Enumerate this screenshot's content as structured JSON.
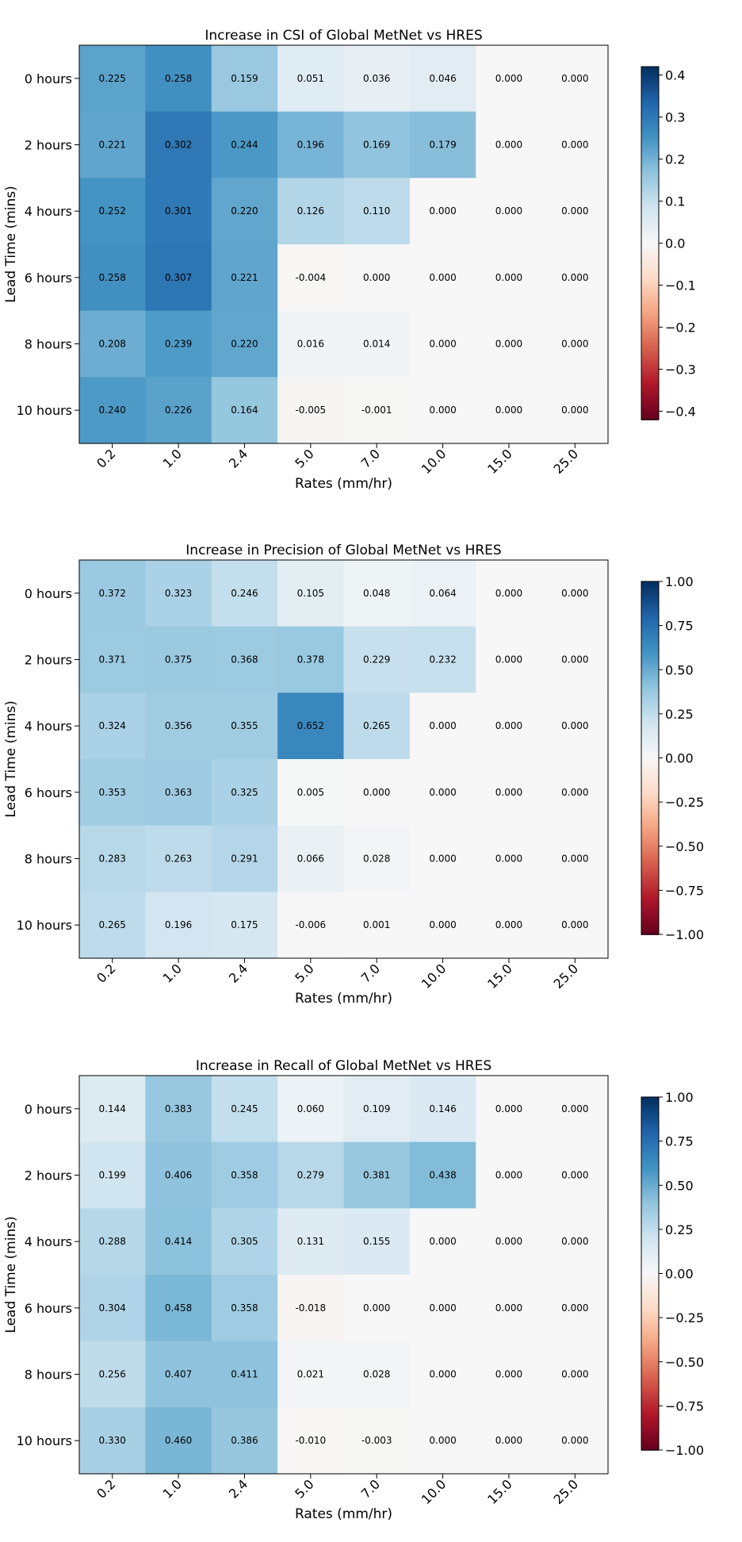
{
  "chart_data": [
    {
      "type": "heatmap",
      "title": "Increase in CSI of Global MetNet vs HRES",
      "xlabel": "Rates (mm/hr)",
      "ylabel": "Lead Time (mins)",
      "x_categories": [
        "0.2",
        "1.0",
        "2.4",
        "5.0",
        "7.0",
        "10.0",
        "15.0",
        "25.0"
      ],
      "y_categories": [
        "0 hours",
        "2 hours",
        "4 hours",
        "6 hours",
        "8 hours",
        "10 hours"
      ],
      "values": [
        [
          0.225,
          0.258,
          0.159,
          0.051,
          0.036,
          0.046,
          0.0,
          0.0
        ],
        [
          0.221,
          0.302,
          0.244,
          0.196,
          0.169,
          0.179,
          0.0,
          0.0
        ],
        [
          0.252,
          0.301,
          0.22,
          0.126,
          0.11,
          0.0,
          0.0,
          0.0
        ],
        [
          0.258,
          0.307,
          0.221,
          -0.004,
          0.0,
          0.0,
          0.0,
          0.0
        ],
        [
          0.208,
          0.239,
          0.22,
          0.016,
          0.014,
          0.0,
          0.0,
          0.0
        ],
        [
          0.24,
          0.226,
          0.164,
          -0.005,
          -0.001,
          0.0,
          0.0,
          0.0
        ]
      ],
      "value_labels": [
        [
          "0.225",
          "0.258",
          "0.159",
          "0.051",
          "0.036",
          "0.046",
          "0.000",
          "0.000"
        ],
        [
          "0.221",
          "0.302",
          "0.244",
          "0.196",
          "0.169",
          "0.179",
          "0.000",
          "0.000"
        ],
        [
          "0.252",
          "0.301",
          "0.220",
          "0.126",
          "0.110",
          "0.000",
          "0.000",
          "0.000"
        ],
        [
          "0.258",
          "0.307",
          "0.221",
          "-0.004",
          "0.000",
          "0.000",
          "0.000",
          "0.000"
        ],
        [
          "0.208",
          "0.239",
          "0.220",
          "0.016",
          "0.014",
          "0.000",
          "0.000",
          "0.000"
        ],
        [
          "0.240",
          "0.226",
          "0.164",
          "-0.005",
          "-0.001",
          "0.000",
          "0.000",
          "0.000"
        ]
      ],
      "colormap": "RdBu",
      "vmin": -0.42,
      "vmax": 0.42,
      "colorbar_ticks": [
        0.4,
        0.3,
        0.2,
        0.1,
        0.0,
        -0.1,
        -0.2,
        -0.3,
        -0.4
      ],
      "colorbar_tick_labels": [
        "0.4",
        "0.3",
        "0.2",
        "0.1",
        "0.0",
        "−0.1",
        "−0.2",
        "−0.3",
        "−0.4"
      ]
    },
    {
      "type": "heatmap",
      "title": "Increase in Precision of Global MetNet vs HRES",
      "xlabel": "Rates (mm/hr)",
      "ylabel": "Lead Time (mins)",
      "x_categories": [
        "0.2",
        "1.0",
        "2.4",
        "5.0",
        "7.0",
        "10.0",
        "15.0",
        "25.0"
      ],
      "y_categories": [
        "0 hours",
        "2 hours",
        "4 hours",
        "6 hours",
        "8 hours",
        "10 hours"
      ],
      "values": [
        [
          0.372,
          0.323,
          0.246,
          0.105,
          0.048,
          0.064,
          0.0,
          0.0
        ],
        [
          0.371,
          0.375,
          0.368,
          0.378,
          0.229,
          0.232,
          0.0,
          0.0
        ],
        [
          0.324,
          0.356,
          0.355,
          0.652,
          0.265,
          0.0,
          0.0,
          0.0
        ],
        [
          0.353,
          0.363,
          0.325,
          0.005,
          0.0,
          0.0,
          0.0,
          0.0
        ],
        [
          0.283,
          0.263,
          0.291,
          0.066,
          0.028,
          0.0,
          0.0,
          0.0
        ],
        [
          0.265,
          0.196,
          0.175,
          -0.006,
          0.001,
          0.0,
          0.0,
          0.0
        ]
      ],
      "value_labels": [
        [
          "0.372",
          "0.323",
          "0.246",
          "0.105",
          "0.048",
          "0.064",
          "0.000",
          "0.000"
        ],
        [
          "0.371",
          "0.375",
          "0.368",
          "0.378",
          "0.229",
          "0.232",
          "0.000",
          "0.000"
        ],
        [
          "0.324",
          "0.356",
          "0.355",
          "0.652",
          "0.265",
          "0.000",
          "0.000",
          "0.000"
        ],
        [
          "0.353",
          "0.363",
          "0.325",
          "0.005",
          "0.000",
          "0.000",
          "0.000",
          "0.000"
        ],
        [
          "0.283",
          "0.263",
          "0.291",
          "0.066",
          "0.028",
          "0.000",
          "0.000",
          "0.000"
        ],
        [
          "0.265",
          "0.196",
          "0.175",
          "-0.006",
          "0.001",
          "0.000",
          "0.000",
          "0.000"
        ]
      ],
      "colormap": "RdBu",
      "vmin": -1.0,
      "vmax": 1.0,
      "colorbar_ticks": [
        1.0,
        0.75,
        0.5,
        0.25,
        0.0,
        -0.25,
        -0.5,
        -0.75,
        -1.0
      ],
      "colorbar_tick_labels": [
        "1.00",
        "0.75",
        "0.50",
        "0.25",
        "0.00",
        "−0.25",
        "−0.50",
        "−0.75",
        "−1.00"
      ]
    },
    {
      "type": "heatmap",
      "title": "Increase in Recall of Global MetNet vs HRES",
      "xlabel": "Rates (mm/hr)",
      "ylabel": "Lead Time (mins)",
      "x_categories": [
        "0.2",
        "1.0",
        "2.4",
        "5.0",
        "7.0",
        "10.0",
        "15.0",
        "25.0"
      ],
      "y_categories": [
        "0 hours",
        "2 hours",
        "4 hours",
        "6 hours",
        "8 hours",
        "10 hours"
      ],
      "values": [
        [
          0.144,
          0.383,
          0.245,
          0.06,
          0.109,
          0.146,
          0.0,
          0.0
        ],
        [
          0.199,
          0.406,
          0.358,
          0.279,
          0.381,
          0.438,
          0.0,
          0.0
        ],
        [
          0.288,
          0.414,
          0.305,
          0.131,
          0.155,
          0.0,
          0.0,
          0.0
        ],
        [
          0.304,
          0.458,
          0.358,
          -0.018,
          0.0,
          0.0,
          0.0,
          0.0
        ],
        [
          0.256,
          0.407,
          0.411,
          0.021,
          0.028,
          0.0,
          0.0,
          0.0
        ],
        [
          0.33,
          0.46,
          0.386,
          -0.01,
          -0.003,
          0.0,
          0.0,
          0.0
        ]
      ],
      "value_labels": [
        [
          "0.144",
          "0.383",
          "0.245",
          "0.060",
          "0.109",
          "0.146",
          "0.000",
          "0.000"
        ],
        [
          "0.199",
          "0.406",
          "0.358",
          "0.279",
          "0.381",
          "0.438",
          "0.000",
          "0.000"
        ],
        [
          "0.288",
          "0.414",
          "0.305",
          "0.131",
          "0.155",
          "0.000",
          "0.000",
          "0.000"
        ],
        [
          "0.304",
          "0.458",
          "0.358",
          "-0.018",
          "0.000",
          "0.000",
          "0.000",
          "0.000"
        ],
        [
          "0.256",
          "0.407",
          "0.411",
          "0.021",
          "0.028",
          "0.000",
          "0.000",
          "0.000"
        ],
        [
          "0.330",
          "0.460",
          "0.386",
          "-0.010",
          "-0.003",
          "0.000",
          "0.000",
          "0.000"
        ]
      ],
      "colormap": "RdBu",
      "vmin": -1.0,
      "vmax": 1.0,
      "colorbar_ticks": [
        1.0,
        0.75,
        0.5,
        0.25,
        0.0,
        -0.25,
        -0.5,
        -0.75,
        -1.0
      ],
      "colorbar_tick_labels": [
        "1.00",
        "0.75",
        "0.50",
        "0.25",
        "0.00",
        "−0.25",
        "−0.50",
        "−0.75",
        "−1.00"
      ]
    }
  ]
}
